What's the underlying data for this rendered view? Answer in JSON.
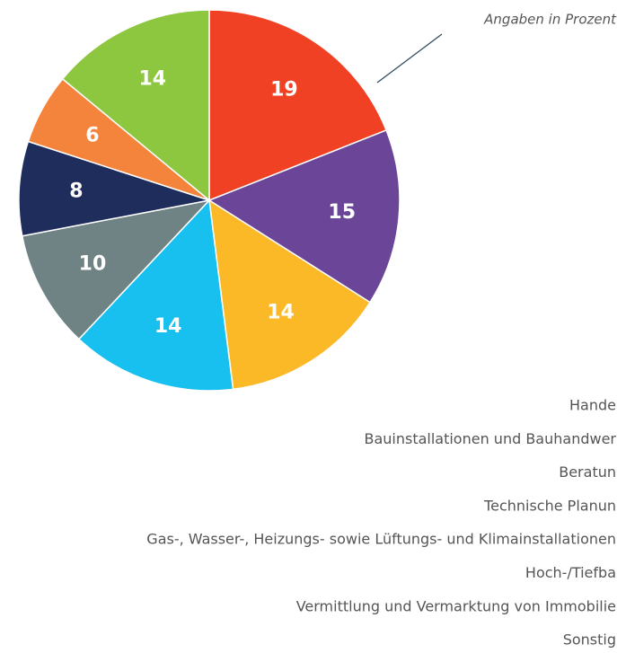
{
  "chart_data": {
    "type": "pie",
    "annotation": "Angaben in Prozent",
    "categories": [
      "Hande",
      "Bauinstallationen und Bauhandwer",
      "Beratun",
      "Technische Planun",
      "Gas-, Wasser-, Heizungs- sowie Lüftungs- und Klimainstallationen",
      "Hoch-/Tiefba",
      "Vermittlung und Vermarktung von Immobilie",
      "Sonstig"
    ],
    "values": [
      19,
      15,
      14,
      14,
      10,
      8,
      6,
      14
    ],
    "colors": [
      "#f04124",
      "#6a4598",
      "#fbb827",
      "#18c0f0",
      "#6f8284",
      "#1f2d5c",
      "#f4843c",
      "#8dc63f"
    ]
  }
}
